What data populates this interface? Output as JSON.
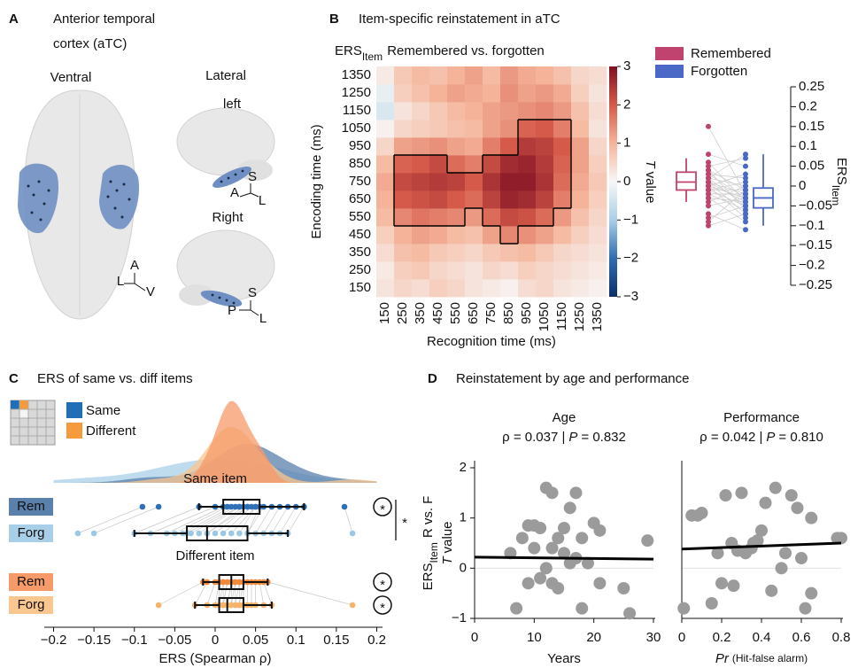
{
  "panel_labels": [
    "A",
    "B",
    "C",
    "D"
  ],
  "brain": {
    "title": [
      "Anterior temporal",
      "cortex (aTC)"
    ],
    "views": {
      "ventral": "Ventral",
      "lateral": "Lateral",
      "left": "left",
      "right": "Right"
    },
    "axes": {
      "ventral": [
        "A",
        "L",
        "V"
      ],
      "left": [
        "S",
        "A",
        "L"
      ],
      "right": [
        "S",
        "P",
        "L"
      ]
    }
  },
  "chart_data": [
    {
      "type": "heatmap",
      "title": "Item-specific reinstatement in aTC",
      "subtitle": [
        "ERS",
        "Item",
        "Remembered vs. forgotten"
      ],
      "x": [
        150,
        250,
        350,
        450,
        550,
        650,
        750,
        850,
        950,
        1050,
        1150,
        1250,
        1350
      ],
      "y": [
        150,
        250,
        350,
        450,
        550,
        650,
        750,
        850,
        950,
        1050,
        1150,
        1250,
        1350
      ],
      "values": [
        [
          0.3,
          0.5,
          0.4,
          0.6,
          0.5,
          0.3,
          0.2,
          0.1,
          0.4,
          0.5,
          0.3,
          0.2,
          0.1
        ],
        [
          0.2,
          0.6,
          0.7,
          0.5,
          0.4,
          0.3,
          0.5,
          0.4,
          0.6,
          0.5,
          0.4,
          0.3,
          0.2
        ],
        [
          0.4,
          0.8,
          0.9,
          0.7,
          0.6,
          0.5,
          0.7,
          0.8,
          0.9,
          0.7,
          0.5,
          0.4,
          0.3
        ],
        [
          0.6,
          1.0,
          1.2,
          1.1,
          0.9,
          0.8,
          1.2,
          1.5,
          1.4,
          1.2,
          0.9,
          0.6,
          0.4
        ],
        [
          0.9,
          1.5,
          1.7,
          1.6,
          1.5,
          1.3,
          1.8,
          2.2,
          2.1,
          1.8,
          1.3,
          0.8,
          0.5
        ],
        [
          1.0,
          2.0,
          2.1,
          2.2,
          2.0,
          1.8,
          2.3,
          2.7,
          2.6,
          2.3,
          1.6,
          1.0,
          0.6
        ],
        [
          1.1,
          2.2,
          2.3,
          2.4,
          2.3,
          2.0,
          2.5,
          2.8,
          2.8,
          2.5,
          1.8,
          1.1,
          0.7
        ],
        [
          0.9,
          1.9,
          2.0,
          2.2,
          1.8,
          1.6,
          2.2,
          2.6,
          2.7,
          2.4,
          1.9,
          1.2,
          0.6
        ],
        [
          0.5,
          1.2,
          1.3,
          1.4,
          1.2,
          1.1,
          1.6,
          2.0,
          2.4,
          2.3,
          2.0,
          1.2,
          0.5
        ],
        [
          0.1,
          0.5,
          0.6,
          0.7,
          0.8,
          0.9,
          1.2,
          1.4,
          1.9,
          2.0,
          1.6,
          0.9,
          0.3
        ],
        [
          -0.4,
          0.3,
          0.5,
          0.7,
          0.9,
          1.0,
          1.2,
          1.3,
          1.4,
          1.5,
          1.3,
          0.8,
          0.4
        ],
        [
          -0.2,
          0.6,
          0.8,
          1.0,
          1.2,
          1.1,
          1.0,
          1.4,
          1.2,
          1.3,
          1.1,
          0.6,
          0.3
        ],
        [
          0.2,
          0.7,
          0.9,
          0.8,
          1.0,
          1.2,
          0.9,
          1.3,
          1.1,
          1.0,
          0.8,
          0.5,
          0.4
        ]
      ],
      "cluster": [
        [
          0,
          0,
          0,
          0,
          0,
          0,
          0,
          0,
          0,
          0,
          0,
          0,
          0
        ],
        [
          0,
          0,
          0,
          0,
          0,
          0,
          0,
          0,
          0,
          0,
          0,
          0,
          0
        ],
        [
          0,
          0,
          0,
          0,
          0,
          0,
          0,
          0,
          0,
          0,
          0,
          0,
          0
        ],
        [
          0,
          0,
          0,
          0,
          0,
          0,
          0,
          1,
          0,
          0,
          0,
          0,
          0
        ],
        [
          0,
          1,
          1,
          1,
          1,
          0,
          1,
          1,
          1,
          1,
          0,
          0,
          0
        ],
        [
          0,
          1,
          1,
          1,
          1,
          1,
          1,
          1,
          1,
          1,
          1,
          0,
          0
        ],
        [
          0,
          1,
          1,
          1,
          1,
          1,
          1,
          1,
          1,
          1,
          1,
          0,
          0
        ],
        [
          0,
          1,
          1,
          1,
          0,
          0,
          1,
          1,
          1,
          1,
          1,
          0,
          0
        ],
        [
          0,
          0,
          0,
          0,
          0,
          0,
          0,
          0,
          1,
          1,
          1,
          0,
          0
        ],
        [
          0,
          0,
          0,
          0,
          0,
          0,
          0,
          0,
          1,
          1,
          1,
          0,
          0
        ],
        [
          0,
          0,
          0,
          0,
          0,
          0,
          0,
          0,
          0,
          0,
          0,
          0,
          0
        ],
        [
          0,
          0,
          0,
          0,
          0,
          0,
          0,
          0,
          0,
          0,
          0,
          0,
          0
        ],
        [
          0,
          0,
          0,
          0,
          0,
          0,
          0,
          0,
          0,
          0,
          0,
          0,
          0
        ]
      ],
      "xlabel": "Recognition time (ms)",
      "ylabel": "Encoding time (ms)",
      "clim": [
        -3,
        3
      ],
      "cticks": [
        {
          "value": -3,
          "label": "−3"
        },
        {
          "value": -2,
          "label": "−2"
        },
        {
          "value": -1,
          "label": "−1"
        },
        0,
        1,
        2,
        3
      ],
      "colorbar_label": [
        "T",
        "value"
      ],
      "cmap": [
        "#0a2f6b",
        "#2f6db0",
        "#a9cfe5",
        "#f7f7f7",
        "#f5b49a",
        "#d55a4a",
        "#7f0e22"
      ]
    },
    {
      "type": "box",
      "series": [
        {
          "name": "Remembered",
          "color": "#c0426e",
          "values": [
            0.15,
            0.08,
            0.06,
            0.05,
            0.04,
            0.04,
            0.03,
            0.03,
            0.02,
            0.02,
            0.02,
            0.01,
            0.01,
            0.01,
            0.0,
            0.0,
            0.0,
            -0.01,
            -0.01,
            -0.01,
            -0.02,
            -0.02,
            -0.03,
            -0.03,
            -0.04,
            -0.05,
            -0.07,
            -0.08,
            -0.09,
            -0.1
          ],
          "box": {
            "q1": -0.01,
            "median": 0.01,
            "q3": 0.035,
            "whisker_low": -0.04,
            "whisker_high": 0.07
          }
        },
        {
          "name": "Forgotten",
          "color": "#4a68c5",
          "values": [
            -0.02,
            0.05,
            -0.04,
            0.07,
            -0.01,
            -0.06,
            0.02,
            -0.03,
            0.0,
            -0.05,
            0.08,
            -0.02,
            -0.07,
            -0.04,
            0.03,
            -0.03,
            -0.08,
            -0.01,
            -0.05,
            0.01,
            -0.02,
            -0.06,
            -0.04,
            -0.09,
            0.0,
            -0.03,
            -0.11,
            -0.05,
            -0.01,
            -0.07
          ],
          "box": {
            "q1": -0.055,
            "median": -0.03,
            "q3": -0.005,
            "whisker_low": -0.1,
            "whisker_high": 0.08
          }
        }
      ],
      "ylim": [
        -0.25,
        0.25
      ],
      "yticks": [
        {
          "value": -0.25,
          "label": "−0.25"
        },
        {
          "value": -0.2,
          "label": "−0.2"
        },
        {
          "value": -0.15,
          "label": "−0.15"
        },
        {
          "value": -0.1,
          "label": "−0.1"
        },
        {
          "value": -0.05,
          "label": "−0.05"
        },
        0,
        0.05,
        0.1,
        0.15,
        0.2,
        0.25
      ],
      "ylabel": [
        "ERS",
        "Item"
      ]
    },
    {
      "type": "raincloud",
      "title": "ERS of same vs. diff items",
      "legend": [
        {
          "name": "Same",
          "color": "#1f6fb8"
        },
        {
          "name": "Different",
          "color": "#f59b3b"
        }
      ],
      "groups": [
        {
          "name": "Same item",
          "color": "#2f7fc8",
          "sig": "*",
          "series": [
            {
              "name": "Rem",
              "color": "#5a80ac",
              "point_color": "#2f6fb5",
              "sig": "*",
              "values": [
                -0.09,
                -0.07,
                -0.02,
                0.0,
                0.01,
                0.015,
                0.02,
                0.025,
                0.03,
                0.03,
                0.035,
                0.04,
                0.04,
                0.045,
                0.05,
                0.05,
                0.055,
                0.06,
                0.07,
                0.08,
                0.09,
                0.1,
                0.11,
                0.16
              ],
              "box": {
                "q1": 0.01,
                "median": 0.035,
                "q3": 0.055,
                "whisker_low": -0.02,
                "whisker_high": 0.11
              }
            },
            {
              "name": "Forg",
              "color": "#a9cfe8",
              "point_color": "#9cc8e6",
              "values": [
                -0.17,
                -0.15,
                -0.1,
                -0.08,
                -0.06,
                -0.05,
                -0.04,
                -0.035,
                -0.03,
                -0.02,
                -0.01,
                -0.01,
                0.0,
                0.01,
                0.02,
                0.03,
                0.04,
                0.04,
                0.05,
                0.06,
                0.07,
                0.08,
                0.09,
                0.17
              ],
              "box": {
                "q1": -0.035,
                "median": -0.01,
                "q3": 0.04,
                "whisker_low": -0.1,
                "whisker_high": 0.09
              }
            }
          ]
        },
        {
          "name": "Different item",
          "color": "#f59b3b",
          "series": [
            {
              "name": "Rem",
              "color": "#f79a6a",
              "point_color": "#f08a3c",
              "sig": "*",
              "values": [
                -0.015,
                -0.01,
                0.0,
                0.005,
                0.005,
                0.01,
                0.01,
                0.015,
                0.015,
                0.02,
                0.02,
                0.02,
                0.025,
                0.025,
                0.03,
                0.03,
                0.035,
                0.035,
                0.04,
                0.045,
                0.05,
                0.055,
                0.06,
                0.065
              ],
              "box": {
                "q1": 0.005,
                "median": 0.02,
                "q3": 0.035,
                "whisker_low": -0.015,
                "whisker_high": 0.065
              }
            },
            {
              "name": "Forg",
              "color": "#fbc790",
              "point_color": "#f6b46a",
              "sig": "*",
              "values": [
                -0.07,
                -0.025,
                -0.01,
                0.0,
                0.005,
                0.005,
                0.01,
                0.01,
                0.01,
                0.015,
                0.015,
                0.02,
                0.02,
                0.025,
                0.025,
                0.03,
                0.03,
                0.035,
                0.04,
                0.045,
                0.05,
                0.06,
                0.07,
                0.17
              ],
              "box": {
                "q1": 0.005,
                "median": 0.015,
                "q3": 0.035,
                "whisker_low": -0.025,
                "whisker_high": 0.07
              }
            }
          ]
        }
      ],
      "xlim": [
        -0.2,
        0.2
      ],
      "xticks": [
        {
          "value": -0.2,
          "label": "−0.2"
        },
        {
          "value": -0.15,
          "label": "−0.15"
        },
        {
          "value": -0.1,
          "label": "−0.1"
        },
        {
          "value": -0.05,
          "label": "−0.05"
        },
        0,
        0.05,
        0.1,
        0.15,
        0.2
      ],
      "xlabel": "ERS (Spearman ρ)"
    },
    {
      "type": "scatter",
      "title": "Reinstatement by age and performance",
      "subtitle": "Age",
      "stats": [
        "ρ = 0.037 |",
        "P",
        "= 0.832"
      ],
      "ylabel": [
        "ERS",
        "Item",
        "R vs. F"
      ],
      "ylabel2": [
        "T",
        "value"
      ],
      "x": [
        6,
        7,
        8,
        9,
        9,
        10,
        10,
        11,
        11,
        12,
        12,
        13,
        13,
        13,
        14,
        14,
        15,
        15,
        16,
        16,
        17,
        17,
        18,
        18,
        19,
        20,
        21,
        21,
        25,
        26,
        29
      ],
      "values": [
        0.3,
        -0.8,
        0.6,
        0.85,
        -0.3,
        0.85,
        0.4,
        0.8,
        -0.2,
        0.0,
        1.6,
        -0.3,
        0.4,
        1.5,
        0.6,
        -0.4,
        0.8,
        0.3,
        1.2,
        0.1,
        0.2,
        1.5,
        -0.8,
        0.6,
        0.1,
        0.9,
        0.75,
        -0.3,
        -0.4,
        -0.9,
        0.55
      ],
      "fit": {
        "intercept": 0.22,
        "slope": -0.0013
      },
      "color": "#9b9b9b",
      "xlim": [
        0,
        30
      ],
      "xticks": [
        0,
        10,
        20,
        30
      ],
      "ylim": [
        -1,
        2
      ],
      "yticks": [
        {
          "value": -1,
          "label": "−1"
        },
        0,
        1,
        2
      ],
      "xlabel": [
        "Years"
      ]
    },
    {
      "type": "scatter",
      "subtitle": "Performance",
      "stats": [
        "ρ = 0.042 |",
        "P",
        "= 0.810"
      ],
      "x": [
        0.01,
        0.05,
        0.08,
        0.1,
        0.15,
        0.18,
        0.2,
        0.22,
        0.25,
        0.26,
        0.28,
        0.3,
        0.32,
        0.35,
        0.36,
        0.38,
        0.4,
        0.42,
        0.45,
        0.47,
        0.5,
        0.52,
        0.55,
        0.58,
        0.6,
        0.62,
        0.65,
        0.65,
        0.78,
        0.8
      ],
      "values": [
        -0.8,
        1.05,
        1.05,
        1.1,
        -0.7,
        0.3,
        -0.3,
        1.45,
        0.5,
        -0.35,
        0.35,
        1.5,
        0.3,
        0.4,
        0.5,
        0.55,
        0.75,
        1.3,
        -0.45,
        1.6,
        0.0,
        0.3,
        1.45,
        1.2,
        0.2,
        -0.8,
        1.0,
        -0.5,
        0.6,
        0.6
      ],
      "fit": {
        "intercept": 0.38,
        "slope": 0.15
      },
      "color": "#9b9b9b",
      "xlim": [
        0,
        0.8
      ],
      "xticks": [
        0,
        0.2,
        0.4,
        0.6,
        0.8
      ],
      "ylim": [
        -1,
        2
      ],
      "xlabel": [
        "Pr",
        "(Hit-false alarm)"
      ]
    }
  ]
}
